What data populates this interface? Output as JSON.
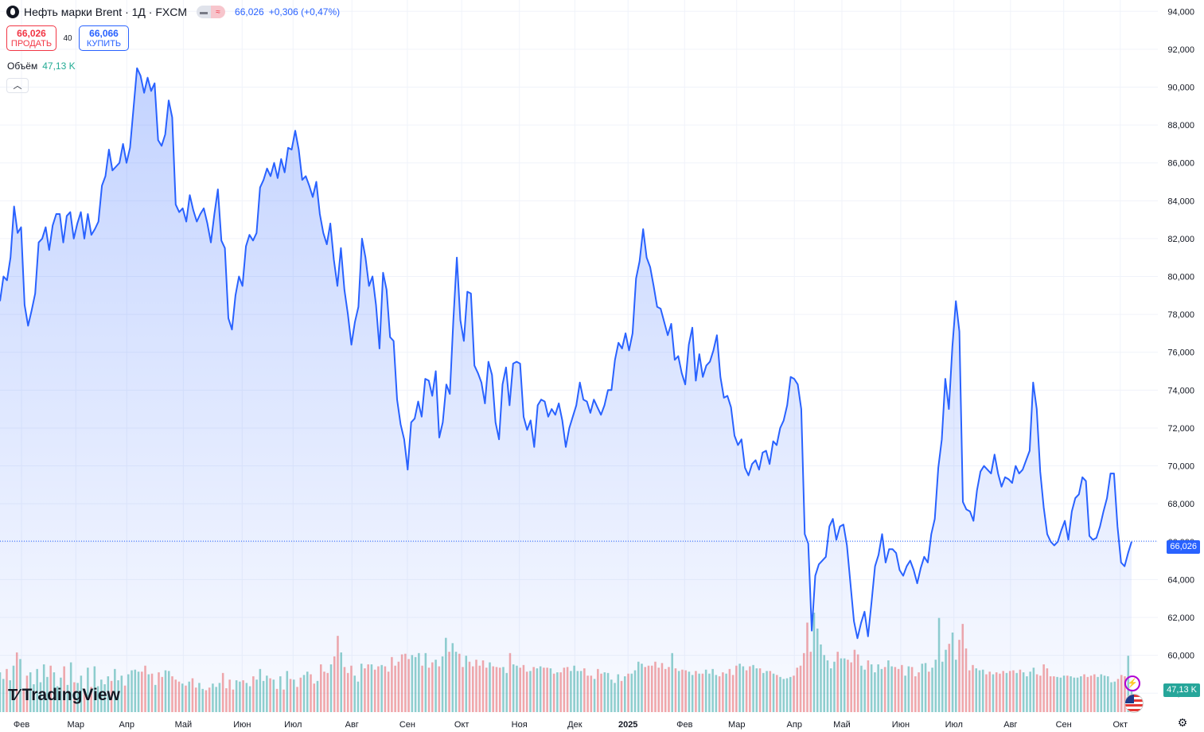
{
  "header": {
    "symbol_title": "Нефть марки Brent · 1Д · FXCM",
    "last_price": "66,026",
    "change": "+0,306 (+0,47%)",
    "sell_price": "66,026",
    "sell_label": "ПРОДАТЬ",
    "spread": "40",
    "buy_price": "66,066",
    "buy_label": "КУПИТЬ",
    "volume_label": "Объём",
    "volume_value": "47,13 K",
    "collapse_icon": "chevron-up-icon"
  },
  "logo": {
    "text": "TradingView",
    "icon": "tradingview-logo-icon"
  },
  "badges": {
    "price": "66,026",
    "volume": "47,13 K"
  },
  "icons": {
    "flash": "flash-icon",
    "flag": "us-flag-icon",
    "settings": "gear-icon"
  },
  "colors": {
    "line": "#2962ff",
    "up_volume": "#26a69a",
    "down_volume": "#ef5350",
    "price_badge": "#2962ff",
    "volume_badge": "#26a69a",
    "sell": "#f23645"
  },
  "chart_data": {
    "type": "area",
    "title": "Нефть марки Brent · 1Д · FXCM",
    "ylim": [
      57000,
      94600
    ],
    "y_ticks": [
      "94,000",
      "92,000",
      "90,000",
      "88,000",
      "86,000",
      "84,000",
      "82,000",
      "80,000",
      "78,000",
      "76,000",
      "74,000",
      "72,000",
      "70,000",
      "68,000",
      "66,000",
      "64,000",
      "62,000",
      "60,000",
      "58,000"
    ],
    "x_labels": [
      "Фев",
      "Мар",
      "Апр",
      "Май",
      "Июн",
      "Июл",
      "Авг",
      "Сен",
      "Окт",
      "Ноя",
      "Дек",
      "2025",
      "Фев",
      "Мар",
      "Апр",
      "Май",
      "Июн",
      "Июл",
      "Авг",
      "Сен",
      "Окт"
    ],
    "current_price": 66026,
    "series": [
      {
        "values": [
          78700,
          80000,
          79800,
          81000,
          83700,
          82300,
          82600,
          78500,
          77400,
          78200,
          79100,
          81800,
          82000,
          82600,
          81400,
          82700,
          83300,
          83300,
          81800,
          83200,
          83400,
          82000,
          82800,
          83400,
          82000,
          83300,
          82200,
          82500,
          82900,
          84800,
          85300,
          86700,
          85600,
          85800,
          86000,
          87000,
          86000,
          86800,
          88900,
          91000,
          90600,
          89700,
          90500,
          89800,
          90200,
          87200,
          86900,
          87500,
          89300,
          88400,
          83800,
          83400,
          83600,
          82900,
          84300,
          83500,
          82900,
          83300,
          83600,
          82800,
          81800,
          83300,
          84600,
          81900,
          81500,
          77800,
          77200,
          79000,
          80000,
          79500,
          81600,
          82200,
          81900,
          82300,
          84700,
          85100,
          85700,
          85300,
          86000,
          85200,
          86200,
          85500,
          86800,
          86700,
          87700,
          86700,
          85100,
          85300,
          84800,
          84200,
          85000,
          83300,
          82300,
          81700,
          82800,
          80900,
          79500,
          81500,
          79300,
          78000,
          76400,
          77600,
          78400,
          82000,
          81000,
          79500,
          80000,
          78500,
          76200,
          80200,
          79300,
          76800,
          76600,
          73500,
          72200,
          71400,
          69800,
          72300,
          72500,
          73400,
          72600,
          74600,
          74500,
          73700,
          75000,
          71500,
          72300,
          74300,
          73800,
          77700,
          81000,
          77700,
          76600,
          79200,
          79100,
          75300,
          74900,
          74400,
          73300,
          75500,
          74800,
          72300,
          71400,
          74300,
          75200,
          73200,
          75400,
          75500,
          75400,
          72600,
          71900,
          72400,
          71000,
          73200,
          73500,
          73400,
          72600,
          73000,
          72700,
          73300,
          72400,
          71000,
          72000,
          72600,
          73200,
          74400,
          73500,
          73400,
          72800,
          73500,
          73100,
          72700,
          73200,
          74000,
          74000,
          75600,
          76500,
          76200,
          77000,
          76100,
          77000,
          79900,
          80800,
          82500,
          81000,
          80500,
          79500,
          78400,
          78300,
          77600,
          76900,
          77500,
          75600,
          75800,
          74900,
          74300,
          76400,
          77300,
          74500,
          75900,
          74700,
          75300,
          75500,
          76100,
          76900,
          74700,
          73600,
          73700,
          73100,
          71600,
          71100,
          71400,
          69900,
          69500,
          70100,
          70300,
          69800,
          70700,
          70800,
          70100,
          71300,
          71100,
          72000,
          72400,
          73200,
          74700,
          74600,
          74300,
          73000,
          66400,
          65900,
          61300,
          64200,
          64800,
          65000,
          65200,
          66800,
          67200,
          66100,
          66800,
          66900,
          65800,
          63800,
          61800,
          60900,
          61700,
          62300,
          61000,
          62800,
          64700,
          65300,
          66400,
          64900,
          65600,
          65600,
          65400,
          64500,
          64200,
          64700,
          65000,
          64500,
          63800,
          64600,
          65200,
          64900,
          66400,
          67200,
          69900,
          71400,
          74600,
          73000,
          76300,
          78700,
          77100,
          68100,
          67700,
          67600,
          67100,
          68700,
          69700,
          70000,
          69800,
          69600,
          70600,
          69600,
          68900,
          69400,
          69300,
          69100,
          70000,
          69600,
          69800,
          70300,
          70800,
          74400,
          73000,
          69700,
          67800,
          66400,
          66000,
          65800,
          66000,
          66600,
          67100,
          66100,
          67600,
          68300,
          68500,
          69400,
          69200,
          66300,
          66100,
          66200,
          66800,
          67600,
          68300,
          69600,
          69600,
          66800,
          64900,
          64700,
          65400,
          66000
        ]
      }
    ],
    "volume_series": {
      "values": [
        6000,
        5000,
        6500,
        4800,
        7000,
        9000,
        8000,
        3500,
        5500,
        6000,
        4200,
        6500,
        4500,
        7200,
        5300,
        7000,
        6000,
        3900,
        5200,
        6900,
        4100,
        7500,
        4500,
        4400,
        5500,
        3500,
        6700,
        3800,
        6900,
        3900,
        4900,
        4200,
        5400,
        4700,
        6500,
        4800,
        5500,
        4000,
        5700,
        6300,
        6400,
        6100,
        6100,
        7000,
        5700,
        5800,
        4100,
        6000,
        5300,
        6300,
        6200,
        5400,
        4900,
        4600,
        4300,
        4000,
        4600,
        5100,
        3700,
        4400,
        3500,
        3300,
        3700,
        4300,
        3800,
        4400,
        5900,
        3600,
        4900,
        3400,
        4800,
        4600,
        4800,
        4400,
        3900,
        5400,
        4900,
        6500,
        4700,
        5500,
        5100,
        4900,
        3500,
        5400,
        3400,
        6200,
        5000,
        4900,
        3800,
        5200,
        5600,
        6100,
        5700,
        4300,
        4700,
        7200,
        6100,
        5900,
        7200,
        8400,
        11500,
        9000,
        6800,
        5900,
        7000,
        5500,
        4600,
        7300,
        6600,
        7200,
        7200,
        6400,
        6900,
        7100,
        6900,
        6100,
        8300,
        7000,
        7600,
        8700,
        8800,
        8000,
        8600,
        8300,
        8900,
        7000,
        8900,
        6700,
        7500,
        7900,
        6900,
        8400,
        11200,
        9100,
        10400,
        9100,
        8800,
        6800,
        8500,
        7600,
        6900,
        7900,
        7000,
        7800,
        6700,
        7500,
        6900,
        6800,
        6700,
        6800,
        5900,
        8900,
        7200,
        7000,
        6700,
        7100,
        6100,
        6200,
        6800,
        6600,
        6900,
        6700,
        6700,
        6600,
        5800,
        6000,
        6000,
        6700,
        6800,
        6200,
        7000,
        6200,
        6200,
        6600,
        5500,
        5500,
        5000,
        6500,
        5800,
        6000,
        5900,
        4900,
        4400,
        5700,
        4700,
        5400,
        5800,
        5800,
        6300,
        7600,
        7300,
        6800,
        7000,
        7000,
        7600,
        6700,
        7400,
        6500,
        6800,
        8900,
        6600,
        6200,
        6400,
        6300,
        6100,
        5600,
        6200,
        5800,
        5800,
        6400,
        5800,
        6500,
        5600,
        5400,
        6000,
        5800,
        6500,
        5600,
        7000,
        7300,
        6900,
        6300,
        6900,
        7100,
        6600,
        6600,
        5900,
        6200,
        6200,
        5800,
        5600,
        5300,
        5000,
        5100,
        5300,
        5500,
        6700,
        7000,
        8900,
        13500,
        9100,
        15000,
        12600,
        10200,
        8600,
        7800,
        6600,
        7600,
        9100,
        8100,
        8100,
        7900,
        7500,
        9400,
        8700,
        7000,
        6400,
        7800,
        7200,
        6000,
        7200,
        6500,
        6800,
        7800,
        6900,
        6800,
        6500,
        7100,
        5500,
        6900,
        6800,
        5400,
        6000,
        7300,
        7400,
        6100,
        6700,
        7900,
        14200,
        7600,
        9400,
        10300,
        12000,
        7900,
        10900,
        13300,
        9600,
        6300,
        7100,
        6600,
        6300,
        6400,
        5700,
        6100,
        5700,
        6000,
        5800,
        6200,
        5900,
        6200,
        6300,
        5900,
        6400,
        6000,
        5400,
        6100,
        6700,
        5700,
        5500,
        7200,
        6600,
        5400,
        5400,
        5300,
        5200,
        5500,
        5500,
        5400,
        5200,
        5200,
        5400,
        5700,
        5300,
        5500,
        5700,
        5300,
        5700,
        5500,
        5400,
        4500,
        4600,
        5000,
        5600,
        5400,
        8500,
        3400
      ]
    }
  }
}
